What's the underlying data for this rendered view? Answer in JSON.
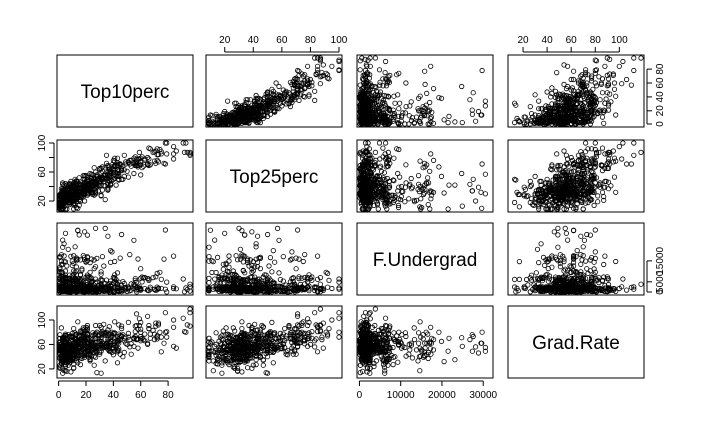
{
  "chart_data": {
    "type": "scatter-matrix",
    "variables": [
      "Top10perc",
      "Top25perc",
      "F.Undergrad",
      "Grad.Rate"
    ],
    "axis_ranges": {
      "Top10perc": [
        1,
        96
      ],
      "Top25perc": [
        9,
        100
      ],
      "F.Undergrad": [
        139,
        31643
      ],
      "Grad.Rate": [
        10,
        118
      ]
    },
    "axis_ticks": {
      "Top10perc": [
        0,
        20,
        40,
        60,
        80
      ],
      "Top25perc": [
        20,
        40,
        60,
        80,
        100
      ],
      "F.Undergrad": [
        0,
        10000,
        20000,
        30000
      ],
      "Grad.Rate": [
        20,
        60,
        100
      ]
    },
    "axis_tick_labels": {
      "Top10perc": [
        "0",
        "20",
        "40",
        "60",
        "80"
      ],
      "Top25perc": [
        "20",
        "40",
        "60",
        "80",
        "100"
      ],
      "F.Undergrad": [
        "0",
        "10000",
        "20000",
        "30000"
      ],
      "Grad.Rate": [
        "20",
        "60",
        "100"
      ]
    },
    "top_axis_ticks": [
      20,
      40,
      60,
      80,
      100
    ],
    "top_axis_tick_labels": [
      "20",
      "40",
      "60",
      "80",
      "100"
    ],
    "right_axis_ticks": {
      "Top10perc": [
        0,
        20,
        40,
        60,
        80
      ],
      "F.Undergrad": [
        0,
        5000,
        15000
      ]
    },
    "right_axis_tick_labels": {
      "Top10perc": [
        "0",
        "20",
        "40",
        "60",
        "80"
      ],
      "F.Undergrad": [
        "0",
        "5000",
        "15000"
      ]
    },
    "n_points": 600,
    "relations": {
      "Top25perc~Top10perc": "strong positive, roughly linear",
      "Grad.Rate~Top10perc": "moderate positive",
      "F.Undergrad": "right-skewed, most values below 5000"
    },
    "grid": false,
    "legend": "none"
  }
}
